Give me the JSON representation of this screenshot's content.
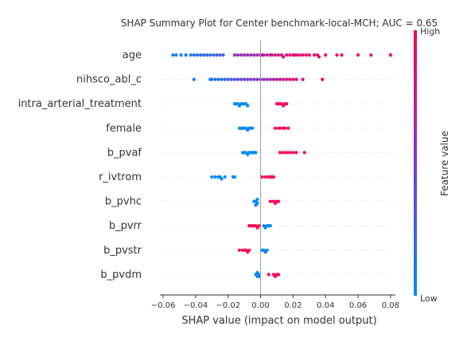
{
  "chart_data": {
    "type": "scatter",
    "title": "SHAP Summary Plot for Center benchmark-local-MCH; AUC = 0.65",
    "xlabel": "SHAP value (impact on model output)",
    "xlim": [
      -0.062,
      0.083
    ],
    "xticks": [
      "−0.06",
      "−0.04",
      "−0.02",
      "0.00",
      "0.02",
      "0.04",
      "0.06",
      "0.08"
    ],
    "features": [
      {
        "name": "age",
        "points": [
          {
            "x": -0.054,
            "v": 0.05
          },
          {
            "x": -0.052,
            "v": 0.08
          },
          {
            "x": -0.049,
            "v": 0.1
          },
          {
            "x": -0.046,
            "v": 0.12
          },
          {
            "x": -0.043,
            "v": 0.15
          },
          {
            "x": -0.041,
            "v": 0.1
          },
          {
            "x": -0.039,
            "v": 0.2
          },
          {
            "x": -0.037,
            "v": 0.18
          },
          {
            "x": -0.035,
            "v": 0.2
          },
          {
            "x": -0.033,
            "v": 0.22
          },
          {
            "x": -0.031,
            "v": 0.25
          },
          {
            "x": -0.029,
            "v": 0.15
          },
          {
            "x": -0.027,
            "v": 0.28
          },
          {
            "x": -0.025,
            "v": 0.25
          },
          {
            "x": -0.023,
            "v": 0.3
          },
          {
            "x": -0.016,
            "v": 0.55
          },
          {
            "x": -0.014,
            "v": 0.6
          },
          {
            "x": -0.012,
            "v": 0.55
          },
          {
            "x": -0.01,
            "v": 0.62
          },
          {
            "x": -0.008,
            "v": 0.65
          },
          {
            "x": -0.006,
            "v": 0.6
          },
          {
            "x": -0.004,
            "v": 0.6
          },
          {
            "x": -0.002,
            "v": 0.65
          },
          {
            "x": 0.0,
            "v": 0.7
          },
          {
            "x": 0.001,
            "v": 0.75
          },
          {
            "x": 0.002,
            "v": 0.7
          },
          {
            "x": 0.004,
            "v": 0.75
          },
          {
            "x": 0.006,
            "v": 0.72
          },
          {
            "x": 0.007,
            "v": 0.85
          },
          {
            "x": 0.009,
            "v": 0.8
          },
          {
            "x": 0.011,
            "v": 0.8
          },
          {
            "x": 0.013,
            "v": 0.82
          },
          {
            "x": 0.014,
            "v": 0.85
          },
          {
            "x": 0.016,
            "v": 0.88
          },
          {
            "x": 0.018,
            "v": 0.85
          },
          {
            "x": 0.02,
            "v": 0.88
          },
          {
            "x": 0.021,
            "v": 0.85
          },
          {
            "x": 0.022,
            "v": 0.9
          },
          {
            "x": 0.024,
            "v": 0.9
          },
          {
            "x": 0.026,
            "v": 0.92
          },
          {
            "x": 0.028,
            "v": 0.92
          },
          {
            "x": 0.03,
            "v": 0.93
          },
          {
            "x": 0.033,
            "v": 0.95
          },
          {
            "x": 0.035,
            "v": 0.95
          },
          {
            "x": 0.036,
            "v": 0.9
          },
          {
            "x": 0.04,
            "v": 0.95
          },
          {
            "x": 0.047,
            "v": 0.97
          },
          {
            "x": 0.05,
            "v": 0.98
          },
          {
            "x": 0.06,
            "v": 0.98
          },
          {
            "x": 0.068,
            "v": 0.99
          },
          {
            "x": 0.08,
            "v": 1.0
          }
        ]
      },
      {
        "name": "nihsco_abl_c",
        "points": [
          {
            "x": -0.041,
            "v": 0.05
          },
          {
            "x": -0.031,
            "v": 0.1
          },
          {
            "x": -0.03,
            "v": 0.12
          },
          {
            "x": -0.028,
            "v": 0.15
          },
          {
            "x": -0.026,
            "v": 0.15
          },
          {
            "x": -0.024,
            "v": 0.2
          },
          {
            "x": -0.022,
            "v": 0.2
          },
          {
            "x": -0.02,
            "v": 0.25
          },
          {
            "x": -0.018,
            "v": 0.3
          },
          {
            "x": -0.016,
            "v": 0.3
          },
          {
            "x": -0.014,
            "v": 0.35
          },
          {
            "x": -0.012,
            "v": 0.4
          },
          {
            "x": -0.01,
            "v": 0.4
          },
          {
            "x": -0.008,
            "v": 0.45
          },
          {
            "x": -0.006,
            "v": 0.5
          },
          {
            "x": -0.004,
            "v": 0.5
          },
          {
            "x": -0.002,
            "v": 0.55
          },
          {
            "x": 0.0,
            "v": 0.55
          },
          {
            "x": 0.002,
            "v": 0.6
          },
          {
            "x": 0.004,
            "v": 0.6
          },
          {
            "x": 0.006,
            "v": 0.65
          },
          {
            "x": 0.008,
            "v": 0.7
          },
          {
            "x": 0.01,
            "v": 0.72
          },
          {
            "x": 0.012,
            "v": 0.75
          },
          {
            "x": 0.014,
            "v": 0.8
          },
          {
            "x": 0.016,
            "v": 0.82
          },
          {
            "x": 0.018,
            "v": 0.85
          },
          {
            "x": 0.02,
            "v": 0.88
          },
          {
            "x": 0.022,
            "v": 0.9
          },
          {
            "x": 0.026,
            "v": 0.92
          },
          {
            "x": 0.038,
            "v": 0.98
          }
        ]
      },
      {
        "name": "intra_arterial_treatment",
        "points": [
          {
            "x": -0.016,
            "v": 0.0
          },
          {
            "x": -0.015,
            "v": 0.0
          },
          {
            "x": -0.014,
            "v": 0.0
          },
          {
            "x": -0.013,
            "v": 0.0
          },
          {
            "x": -0.012,
            "v": 0.0
          },
          {
            "x": -0.011,
            "v": 0.0
          },
          {
            "x": -0.01,
            "v": 0.0
          },
          {
            "x": -0.009,
            "v": 0.0
          },
          {
            "x": -0.008,
            "v": 0.0
          },
          {
            "x": 0.01,
            "v": 1.0
          },
          {
            "x": 0.011,
            "v": 1.0
          },
          {
            "x": 0.012,
            "v": 1.0
          },
          {
            "x": 0.013,
            "v": 1.0
          },
          {
            "x": 0.014,
            "v": 1.0
          },
          {
            "x": 0.015,
            "v": 1.0
          },
          {
            "x": 0.016,
            "v": 1.0
          }
        ]
      },
      {
        "name": "female",
        "points": [
          {
            "x": -0.013,
            "v": 0.0
          },
          {
            "x": -0.012,
            "v": 0.0
          },
          {
            "x": -0.011,
            "v": 0.0
          },
          {
            "x": -0.01,
            "v": 0.0
          },
          {
            "x": -0.009,
            "v": 0.0
          },
          {
            "x": -0.008,
            "v": 0.0
          },
          {
            "x": -0.007,
            "v": 0.0
          },
          {
            "x": -0.006,
            "v": 0.0
          },
          {
            "x": -0.005,
            "v": 0.0
          },
          {
            "x": 0.009,
            "v": 1.0
          },
          {
            "x": 0.011,
            "v": 1.0
          },
          {
            "x": 0.012,
            "v": 1.0
          },
          {
            "x": 0.014,
            "v": 1.0
          },
          {
            "x": 0.015,
            "v": 1.0
          },
          {
            "x": 0.017,
            "v": 1.0
          }
        ]
      },
      {
        "name": "b_pvaf",
        "points": [
          {
            "x": -0.011,
            "v": 0.0
          },
          {
            "x": -0.01,
            "v": 0.0
          },
          {
            "x": -0.009,
            "v": 0.0
          },
          {
            "x": -0.008,
            "v": 0.0
          },
          {
            "x": -0.007,
            "v": 0.0
          },
          {
            "x": -0.006,
            "v": 0.0
          },
          {
            "x": -0.005,
            "v": 0.0
          },
          {
            "x": -0.004,
            "v": 0.0
          },
          {
            "x": -0.003,
            "v": 0.0
          },
          {
            "x": 0.012,
            "v": 1.0
          },
          {
            "x": 0.014,
            "v": 1.0
          },
          {
            "x": 0.016,
            "v": 1.0
          },
          {
            "x": 0.018,
            "v": 1.0
          },
          {
            "x": 0.02,
            "v": 1.0
          },
          {
            "x": 0.022,
            "v": 1.0
          },
          {
            "x": 0.027,
            "v": 1.0
          }
        ]
      },
      {
        "name": "r_ivtrom",
        "points": [
          {
            "x": -0.03,
            "v": 0.0
          },
          {
            "x": -0.028,
            "v": 0.0
          },
          {
            "x": -0.026,
            "v": 0.0
          },
          {
            "x": -0.025,
            "v": 0.0
          },
          {
            "x": -0.024,
            "v": 0.0
          },
          {
            "x": -0.022,
            "v": 0.0
          },
          {
            "x": -0.017,
            "v": 0.0
          },
          {
            "x": -0.016,
            "v": 0.0
          },
          {
            "x": 0.001,
            "v": 1.0
          },
          {
            "x": 0.003,
            "v": 1.0
          },
          {
            "x": 0.005,
            "v": 1.0
          },
          {
            "x": 0.006,
            "v": 1.0
          },
          {
            "x": 0.007,
            "v": 1.0
          },
          {
            "x": 0.008,
            "v": 1.0
          }
        ]
      },
      {
        "name": "b_pvhc",
        "points": [
          {
            "x": -0.004,
            "v": 0.0
          },
          {
            "x": -0.003,
            "v": 0.0
          },
          {
            "x": -0.002,
            "v": 0.0
          },
          {
            "x": -0.002,
            "v": 0.0
          },
          {
            "x": -0.003,
            "v": 0.0
          },
          {
            "x": 0.006,
            "v": 1.0
          },
          {
            "x": 0.008,
            "v": 1.0
          },
          {
            "x": 0.009,
            "v": 1.0
          },
          {
            "x": 0.01,
            "v": 1.0
          },
          {
            "x": 0.011,
            "v": 1.0
          }
        ]
      },
      {
        "name": "b_pvrr",
        "points": [
          {
            "x": -0.007,
            "v": 1.0
          },
          {
            "x": -0.006,
            "v": 1.0
          },
          {
            "x": -0.005,
            "v": 1.0
          },
          {
            "x": -0.004,
            "v": 1.0
          },
          {
            "x": -0.003,
            "v": 1.0
          },
          {
            "x": -0.002,
            "v": 1.0
          },
          {
            "x": -0.001,
            "v": 1.0
          },
          {
            "x": 0.002,
            "v": 0.0
          },
          {
            "x": 0.003,
            "v": 0.0
          },
          {
            "x": 0.004,
            "v": 0.0
          },
          {
            "x": 0.005,
            "v": 0.0
          },
          {
            "x": 0.006,
            "v": 0.0
          }
        ]
      },
      {
        "name": "b_pvstr",
        "points": [
          {
            "x": -0.013,
            "v": 1.0
          },
          {
            "x": -0.011,
            "v": 1.0
          },
          {
            "x": -0.01,
            "v": 1.0
          },
          {
            "x": -0.009,
            "v": 1.0
          },
          {
            "x": -0.008,
            "v": 1.0
          },
          {
            "x": -0.007,
            "v": 1.0
          },
          {
            "x": 0.001,
            "v": 0.0
          },
          {
            "x": 0.002,
            "v": 0.0
          },
          {
            "x": 0.003,
            "v": 0.0
          },
          {
            "x": 0.004,
            "v": 0.0
          }
        ]
      },
      {
        "name": "b_pvdm",
        "points": [
          {
            "x": -0.003,
            "v": 0.0
          },
          {
            "x": -0.002,
            "v": 0.0
          },
          {
            "x": -0.001,
            "v": 0.0
          },
          {
            "x": -0.002,
            "v": 0.0
          },
          {
            "x": -0.001,
            "v": 0.0
          },
          {
            "x": 0.005,
            "v": 1.0
          },
          {
            "x": 0.008,
            "v": 1.0
          },
          {
            "x": 0.009,
            "v": 1.0
          },
          {
            "x": 0.01,
            "v": 1.0
          },
          {
            "x": 0.011,
            "v": 1.0
          }
        ]
      }
    ],
    "colorbar": {
      "label": "Feature value",
      "high_label": "High",
      "low_label": "Low",
      "low_color": "#008afb",
      "mid_color": "#7b39d3",
      "high_color": "#ff0052"
    },
    "grid": false
  }
}
